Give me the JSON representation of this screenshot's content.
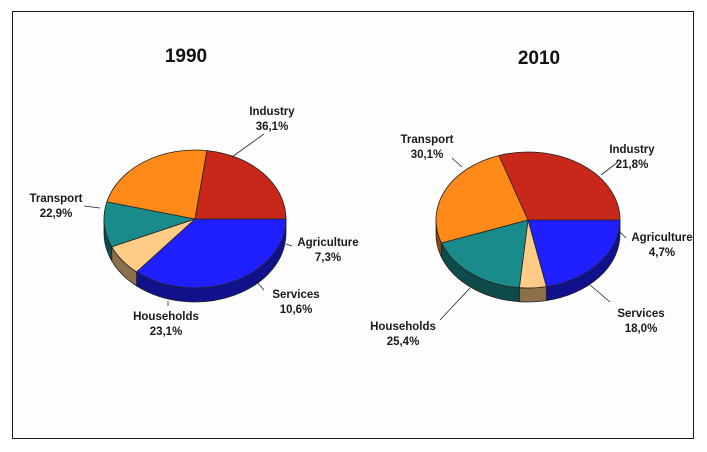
{
  "chart_data": [
    {
      "type": "pie",
      "title": "1990",
      "slices": [
        {
          "label": "Industry",
          "value": 36.1,
          "text": "36,1%",
          "color": "#1f1fff"
        },
        {
          "label": "Agriculture",
          "value": 7.3,
          "text": "7,3%",
          "color": "#ffcc88"
        },
        {
          "label": "Services",
          "value": 10.6,
          "text": "10,6%",
          "color": "#1a8b8b"
        },
        {
          "label": "Households",
          "value": 23.1,
          "text": "23,1%",
          "color": "#ff8a1a"
        },
        {
          "label": "Transport",
          "value": 22.9,
          "text": "22,9%",
          "color": "#c8281a"
        }
      ]
    },
    {
      "type": "pie",
      "title": "2010",
      "slices": [
        {
          "label": "Industry",
          "value": 21.8,
          "text": "21,8%",
          "color": "#1f1fff"
        },
        {
          "label": "Agriculture",
          "value": 4.7,
          "text": "4,7%",
          "color": "#ffcc88"
        },
        {
          "label": "Services",
          "value": 18.0,
          "text": "18,0%",
          "color": "#1a8b8b"
        },
        {
          "label": "Households",
          "value": 25.4,
          "text": "25,4%",
          "color": "#ff8a1a"
        },
        {
          "label": "Transport",
          "value": 30.1,
          "text": "30,1%",
          "color": "#c8281a"
        }
      ]
    }
  ]
}
